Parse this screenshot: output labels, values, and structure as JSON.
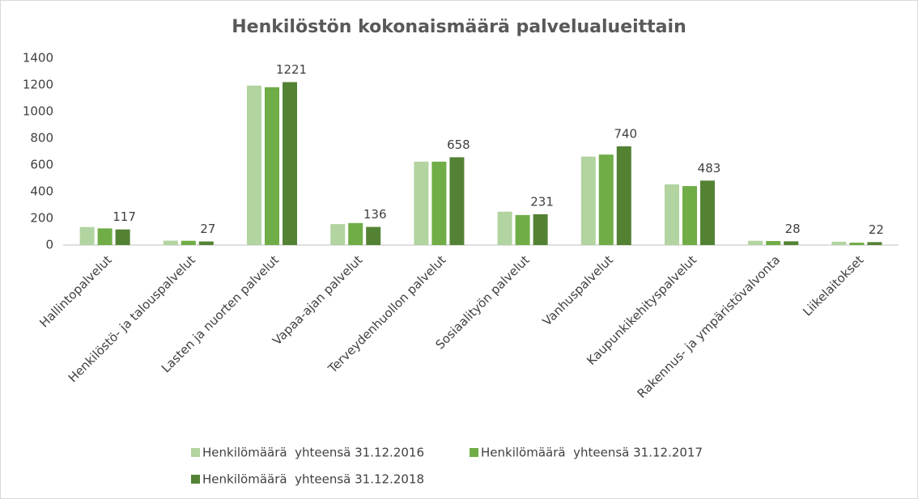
{
  "chart_data": {
    "type": "bar",
    "title": "Henkilöstön kokonaismäärä palvelualueittain",
    "categories": [
      "Hallintopalvelut",
      "Henkilöstö- ja talouspalvelut",
      "Lasten ja nuorten palvelut",
      "Vapaa-ajan palvelut",
      "Terveydenhuollon palvelut",
      "Sosiaalityön palvelut",
      "Vanhuspalvelut",
      "Kaupunkikehityspalvelut",
      "Rakennus- ja ympäristövalvonta",
      "Liikelaitokset"
    ],
    "series": [
      {
        "name": "Henkilömäärä  yhteensä 31.12.2016",
        "color": "#b2d4a0",
        "values": [
          135,
          33,
          1195,
          157,
          625,
          250,
          663,
          455,
          32,
          25
        ]
      },
      {
        "name": "Henkilömäärä  yhteensä 31.12.2017",
        "color": "#70ad47",
        "values": [
          125,
          32,
          1183,
          165,
          625,
          225,
          678,
          442,
          30,
          18
        ]
      },
      {
        "name": "Henkilömäärä  yhteensä 31.12.2018",
        "color": "#548235",
        "values": [
          117,
          27,
          1221,
          136,
          658,
          231,
          740,
          483,
          28,
          22
        ],
        "data_labels": true
      }
    ],
    "ylim": [
      0,
      1400
    ],
    "yticks": [
      0,
      200,
      400,
      600,
      800,
      1000,
      1200,
      1400
    ],
    "grid": false,
    "legend": "bottom"
  }
}
